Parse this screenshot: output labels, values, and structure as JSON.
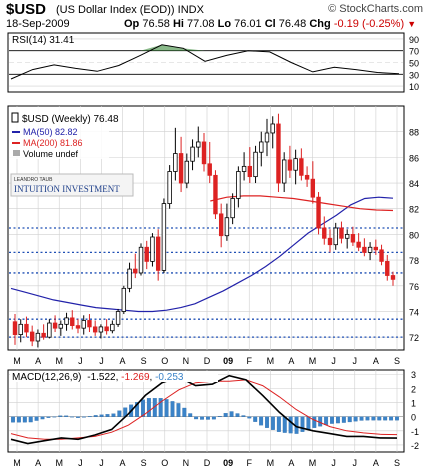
{
  "header": {
    "symbol": "$USD",
    "name": "(US Dollar Index (EOD))",
    "exchange": "INDX",
    "source": "© StockCharts.com",
    "date": "18-Sep-2009",
    "open_label": "Op",
    "open": "76.58",
    "high_label": "Hi",
    "high": "77.08",
    "low_label": "Lo",
    "low": "76.01",
    "close_label": "Cl",
    "close": "76.48",
    "change_label": "Chg",
    "change": "-0.19 (-0.25%)",
    "arrow": "▼"
  },
  "colors": {
    "up_candle": "#ffffff",
    "down_candle": "#dd2222",
    "ma50": "#2222aa",
    "ma200": "#dd2222",
    "rsi": "#000000",
    "macd": "#000000",
    "signal": "#dd2222",
    "histogram": "#3b83c8",
    "support_lines": "#1f4fb4",
    "grid": "#cfcfcf"
  },
  "watermark": {
    "line1": "LEANDRO TAUB",
    "line2": "INTUITION INVESTMENT"
  },
  "legend": {
    "title": "$USD (Weekly) 76.48",
    "ma50": "MA(50) 82.82",
    "ma200": "MA(200) 81.86",
    "volume": "Volume undef"
  },
  "chart_data": [
    {
      "panel": "rsi",
      "type": "line",
      "title": "RSI(14) 31.41",
      "yticks": [
        10,
        30,
        50,
        70,
        90
      ],
      "ylim": [
        0,
        100
      ],
      "reference_lines": [
        30,
        50,
        70
      ],
      "x": [
        "2008-03",
        "2008-04",
        "2008-05",
        "2008-06",
        "2008-07",
        "2008-08",
        "2008-09",
        "2008-10",
        "2008-11",
        "2008-12",
        "2009-01",
        "2009-02",
        "2009-03",
        "2009-04",
        "2009-05",
        "2009-06",
        "2009-07",
        "2009-08",
        "2009-09"
      ],
      "values": [
        22,
        38,
        46,
        40,
        35,
        45,
        62,
        80,
        74,
        52,
        62,
        70,
        68,
        50,
        34,
        42,
        38,
        33,
        31
      ]
    },
    {
      "panel": "price",
      "type": "candlestick",
      "title": "$USD (Weekly) 76.48",
      "yticks": [
        72,
        74,
        76,
        78,
        80,
        82,
        84,
        86,
        88
      ],
      "ylim": [
        71,
        90
      ],
      "support_lines": [
        72,
        73.4,
        77,
        78.6,
        80.5
      ],
      "x_labels": [
        "M",
        "A",
        "M",
        "J",
        "J",
        "A",
        "S",
        "O",
        "N",
        "D",
        "09",
        "F",
        "M",
        "A",
        "M",
        "J",
        "J",
        "A",
        "S"
      ],
      "candles": [
        {
          "o": 73.2,
          "h": 73.8,
          "l": 71.4,
          "c": 72.2
        },
        {
          "o": 72.2,
          "h": 73.4,
          "l": 71.6,
          "c": 73.0
        },
        {
          "o": 73.0,
          "h": 73.6,
          "l": 72.0,
          "c": 72.4
        },
        {
          "o": 72.4,
          "h": 72.9,
          "l": 71.3,
          "c": 71.7
        },
        {
          "o": 71.7,
          "h": 72.6,
          "l": 71.2,
          "c": 72.3
        },
        {
          "o": 72.3,
          "h": 73.0,
          "l": 71.8,
          "c": 72.0
        },
        {
          "o": 72.0,
          "h": 73.4,
          "l": 71.9,
          "c": 73.1
        },
        {
          "o": 73.1,
          "h": 73.7,
          "l": 72.4,
          "c": 72.7
        },
        {
          "o": 72.7,
          "h": 73.3,
          "l": 72.1,
          "c": 73.0
        },
        {
          "o": 73.0,
          "h": 73.9,
          "l": 72.5,
          "c": 73.5
        },
        {
          "o": 73.5,
          "h": 74.1,
          "l": 72.6,
          "c": 72.9
        },
        {
          "o": 72.9,
          "h": 73.4,
          "l": 72.3,
          "c": 72.7
        },
        {
          "o": 72.7,
          "h": 73.7,
          "l": 72.2,
          "c": 73.3
        },
        {
          "o": 73.3,
          "h": 73.8,
          "l": 72.4,
          "c": 72.8
        },
        {
          "o": 72.8,
          "h": 73.3,
          "l": 72.1,
          "c": 72.4
        },
        {
          "o": 72.4,
          "h": 73.0,
          "l": 71.9,
          "c": 72.8
        },
        {
          "o": 72.8,
          "h": 73.4,
          "l": 72.2,
          "c": 72.5
        },
        {
          "o": 72.5,
          "h": 73.3,
          "l": 72.3,
          "c": 73.0
        },
        {
          "o": 73.0,
          "h": 74.2,
          "l": 72.8,
          "c": 74.0
        },
        {
          "o": 74.0,
          "h": 76.0,
          "l": 73.8,
          "c": 75.8
        },
        {
          "o": 75.8,
          "h": 77.8,
          "l": 75.5,
          "c": 77.3
        },
        {
          "o": 77.3,
          "h": 78.5,
          "l": 76.6,
          "c": 77.0
        },
        {
          "o": 77.0,
          "h": 79.3,
          "l": 76.8,
          "c": 79.0
        },
        {
          "o": 79.0,
          "h": 79.5,
          "l": 77.3,
          "c": 77.9
        },
        {
          "o": 77.9,
          "h": 80.1,
          "l": 77.5,
          "c": 79.8
        },
        {
          "o": 79.8,
          "h": 80.4,
          "l": 76.4,
          "c": 77.2
        },
        {
          "o": 77.2,
          "h": 82.8,
          "l": 77.0,
          "c": 82.4
        },
        {
          "o": 82.4,
          "h": 85.4,
          "l": 82.0,
          "c": 84.9
        },
        {
          "o": 84.9,
          "h": 88.3,
          "l": 84.2,
          "c": 86.3
        },
        {
          "o": 86.3,
          "h": 87.6,
          "l": 83.3,
          "c": 84.0
        },
        {
          "o": 84.0,
          "h": 86.3,
          "l": 83.6,
          "c": 85.7
        },
        {
          "o": 85.7,
          "h": 87.4,
          "l": 85.0,
          "c": 86.8
        },
        {
          "o": 86.8,
          "h": 88.4,
          "l": 86.0,
          "c": 87.2
        },
        {
          "o": 87.2,
          "h": 87.9,
          "l": 84.9,
          "c": 85.5
        },
        {
          "o": 85.5,
          "h": 87.2,
          "l": 84.0,
          "c": 84.6
        },
        {
          "o": 84.6,
          "h": 85.0,
          "l": 81.2,
          "c": 81.6
        },
        {
          "o": 81.6,
          "h": 82.4,
          "l": 79.0,
          "c": 79.9
        },
        {
          "o": 79.9,
          "h": 82.4,
          "l": 79.5,
          "c": 81.3
        },
        {
          "o": 81.3,
          "h": 83.2,
          "l": 80.8,
          "c": 82.8
        },
        {
          "o": 82.8,
          "h": 85.3,
          "l": 82.1,
          "c": 84.9
        },
        {
          "o": 84.9,
          "h": 86.4,
          "l": 84.2,
          "c": 85.3
        },
        {
          "o": 85.3,
          "h": 86.8,
          "l": 84.0,
          "c": 84.5
        },
        {
          "o": 84.5,
          "h": 86.9,
          "l": 84.0,
          "c": 86.4
        },
        {
          "o": 86.4,
          "h": 88.0,
          "l": 85.3,
          "c": 87.2
        },
        {
          "o": 87.2,
          "h": 89.0,
          "l": 86.1,
          "c": 87.9
        },
        {
          "o": 87.9,
          "h": 89.2,
          "l": 86.7,
          "c": 88.6
        },
        {
          "o": 88.6,
          "h": 89.4,
          "l": 83.3,
          "c": 84.0
        },
        {
          "o": 84.0,
          "h": 86.4,
          "l": 83.3,
          "c": 85.8
        },
        {
          "o": 85.8,
          "h": 86.9,
          "l": 84.4,
          "c": 85.0
        },
        {
          "o": 85.0,
          "h": 86.6,
          "l": 83.9,
          "c": 85.9
        },
        {
          "o": 85.9,
          "h": 86.7,
          "l": 84.2,
          "c": 84.6
        },
        {
          "o": 84.6,
          "h": 85.3,
          "l": 83.7,
          "c": 84.3
        },
        {
          "o": 84.3,
          "h": 85.7,
          "l": 82.4,
          "c": 82.9
        },
        {
          "o": 82.9,
          "h": 83.3,
          "l": 80.0,
          "c": 80.5
        },
        {
          "o": 80.5,
          "h": 81.4,
          "l": 79.2,
          "c": 79.7
        },
        {
          "o": 79.7,
          "h": 80.4,
          "l": 78.6,
          "c": 79.2
        },
        {
          "o": 79.2,
          "h": 80.9,
          "l": 78.8,
          "c": 80.5
        },
        {
          "o": 80.5,
          "h": 81.0,
          "l": 79.3,
          "c": 79.7
        },
        {
          "o": 79.7,
          "h": 80.4,
          "l": 78.9,
          "c": 80.0
        },
        {
          "o": 80.0,
          "h": 80.6,
          "l": 79.1,
          "c": 79.4
        },
        {
          "o": 79.4,
          "h": 80.1,
          "l": 78.7,
          "c": 79.0
        },
        {
          "o": 79.0,
          "h": 79.7,
          "l": 78.3,
          "c": 78.6
        },
        {
          "o": 78.6,
          "h": 79.4,
          "l": 78.0,
          "c": 79.0
        },
        {
          "o": 79.0,
          "h": 79.6,
          "l": 78.4,
          "c": 78.8
        },
        {
          "o": 78.8,
          "h": 79.2,
          "l": 77.6,
          "c": 77.9
        },
        {
          "o": 77.9,
          "h": 78.4,
          "l": 76.4,
          "c": 76.8
        },
        {
          "o": 76.8,
          "h": 77.1,
          "l": 76.0,
          "c": 76.5
        }
      ],
      "series": [
        {
          "name": "MA(50) 82.82",
          "values": [
            75.8,
            75.5,
            75.2,
            74.9,
            74.7,
            74.5,
            74.3,
            74.2,
            74.1,
            74.0,
            74.0,
            74.1,
            74.3,
            74.6,
            75.1,
            75.6,
            76.2,
            76.8,
            77.5,
            78.3,
            79.2,
            80.1,
            80.8,
            81.5,
            82.3,
            82.8,
            82.9,
            82.82
          ]
        },
        {
          "name": "MA(200) 81.86",
          "values": [
            null,
            null,
            null,
            null,
            null,
            null,
            null,
            null,
            null,
            null,
            null,
            null,
            82.6,
            82.9,
            83.0,
            83.0,
            82.9,
            82.8,
            82.6,
            82.4,
            82.2,
            82.0,
            81.9,
            81.86
          ]
        }
      ]
    },
    {
      "panel": "macd",
      "type": "line",
      "title": "MACD(12,26,9)",
      "macd_value": "-1.522",
      "signal_value": "-1.269",
      "hist_value": "-0.253",
      "yticks": [
        -2,
        -1,
        0,
        1,
        2,
        3
      ],
      "ylim": [
        -2.5,
        3.3
      ],
      "series": [
        {
          "name": "-1.522",
          "values": [
            -1.6,
            -1.9,
            -1.7,
            -1.5,
            -1.6,
            -1.3,
            -0.9,
            0.2,
            1.5,
            2.4,
            2.8,
            2.2,
            2.3,
            2.9,
            2.6,
            1.5,
            0.3,
            -0.7,
            -1.0,
            -1.2,
            -1.4,
            -1.4,
            -1.5,
            -1.52
          ]
        },
        {
          "name": "-1.269",
          "values": [
            -1.2,
            -1.5,
            -1.6,
            -1.6,
            -1.5,
            -1.4,
            -1.1,
            -0.6,
            0.2,
            1.1,
            1.9,
            2.4,
            2.5,
            2.5,
            2.6,
            2.2,
            1.4,
            0.5,
            -0.2,
            -0.7,
            -1.0,
            -1.15,
            -1.25,
            -1.269
          ]
        },
        {
          "name": "-0.253",
          "values": [
            -0.4,
            -0.4,
            -0.1,
            0.1,
            -0.1,
            0.1,
            0.2,
            0.8,
            1.3,
            1.3,
            0.9,
            -0.2,
            -0.2,
            0.4,
            0.0,
            -0.7,
            -1.1,
            -1.2,
            -0.8,
            -0.5,
            -0.4,
            -0.25,
            -0.25,
            -0.253
          ]
        }
      ]
    }
  ]
}
